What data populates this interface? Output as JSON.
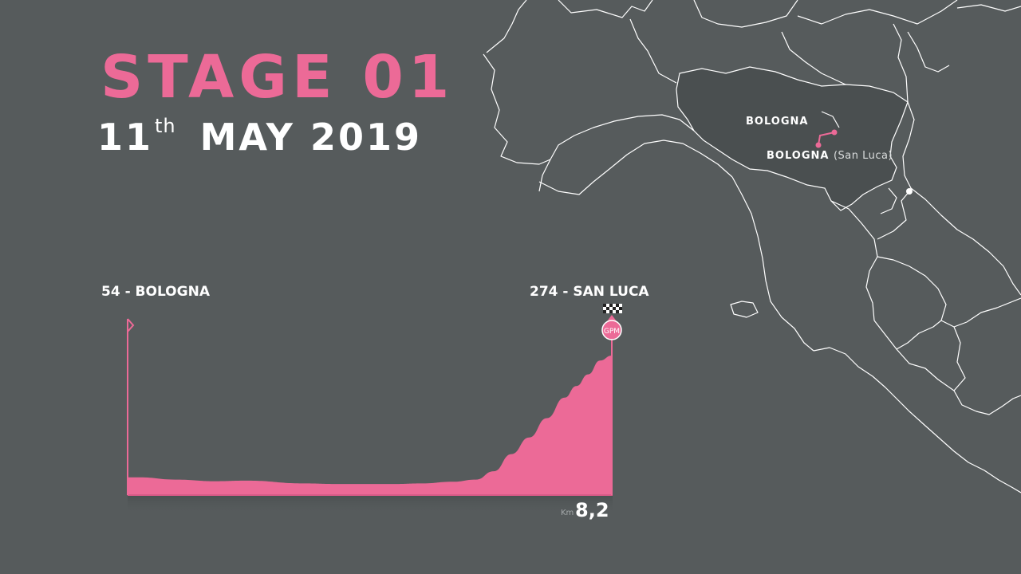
{
  "title": {
    "stage": "STAGE 01",
    "day": "11",
    "ordinal": "th",
    "month_year": "MAY 2019"
  },
  "profile": {
    "start_label": "54 - BOLOGNA",
    "finish_label": "274 - SAN LUCA",
    "gpm_badge": "GPM",
    "distance_unit": "Km",
    "distance": "8,2"
  },
  "map": {
    "start_city": "BOLOGNA",
    "finish_city": "BOLOGNA",
    "finish_sub": "(San Luca)"
  },
  "colors": {
    "background": "#565b5c",
    "accent_pink": "#ec6a97",
    "region_fill": "#4a4f50",
    "border_white": "#ffffff"
  },
  "chart_data": {
    "type": "area",
    "title": "STAGE 01",
    "x_unit": "km",
    "y_unit": "m",
    "xlim": [
      0,
      8.2
    ],
    "x": [
      0,
      0.2,
      0.8,
      1.5,
      2.0,
      3.0,
      3.5,
      4.5,
      5.0,
      5.5,
      5.9,
      6.2,
      6.5,
      6.8,
      7.1,
      7.4,
      7.6,
      7.8,
      8.0,
      8.2
    ],
    "y": [
      54,
      54,
      50,
      47,
      48,
      43,
      42,
      42,
      43,
      46,
      50,
      65,
      96,
      126,
      161,
      198,
      219,
      240,
      265,
      274
    ],
    "start": {
      "km": 0,
      "altitude": 54,
      "name": "BOLOGNA"
    },
    "finish": {
      "km": 8.2,
      "altitude": 274,
      "name": "SAN LUCA"
    }
  }
}
